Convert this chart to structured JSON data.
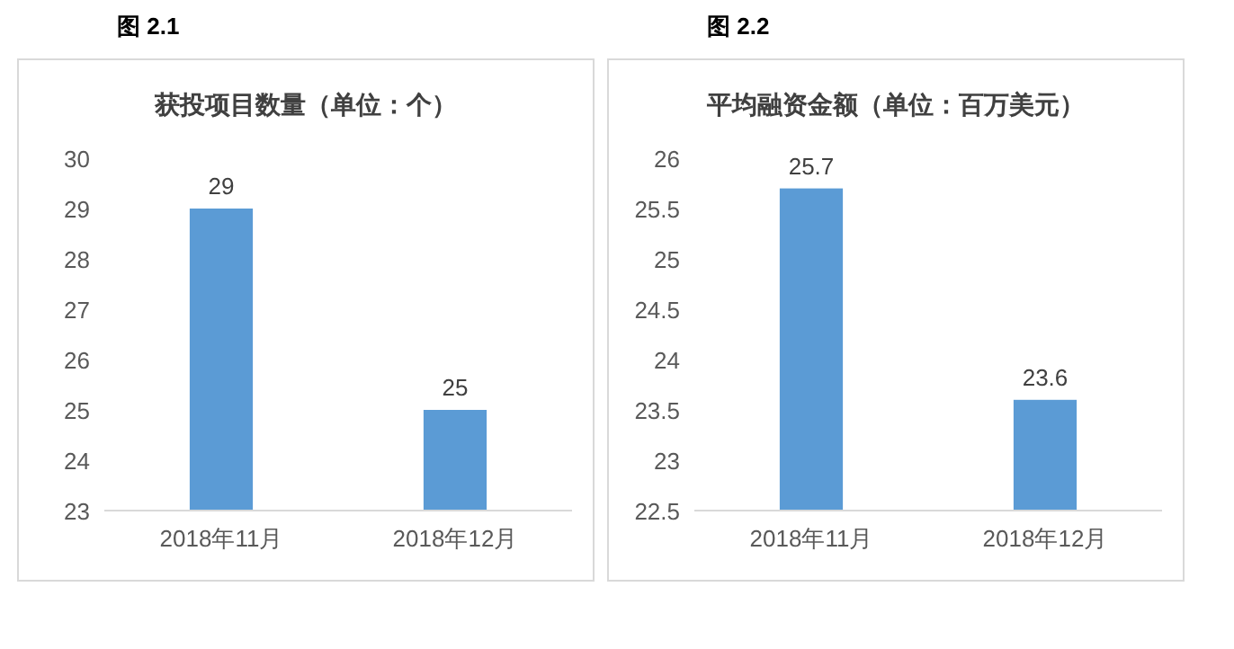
{
  "chart_data": [
    {
      "type": "bar",
      "annotations": [
        "图 2.1"
      ],
      "title": "获投项目数量（单位：个）",
      "categories": [
        "2018年11月",
        "2018年12月"
      ],
      "values": [
        29,
        25
      ],
      "color": "#5b9bd5",
      "ylim": [
        23,
        30
      ],
      "yticks": [
        23,
        24,
        25,
        26,
        27,
        28,
        29,
        30
      ],
      "data_labels": true
    },
    {
      "type": "bar",
      "annotations": [
        "图 2.2"
      ],
      "title": "平均融资金额（单位：百万美元）",
      "categories": [
        "2018年11月",
        "2018年12月"
      ],
      "values": [
        25.7,
        23.6
      ],
      "color": "#5b9bd5",
      "ylim": [
        22.5,
        26
      ],
      "yticks": [
        22.5,
        23,
        23.5,
        24,
        24.5,
        25,
        25.5,
        26
      ],
      "data_labels": true
    }
  ]
}
